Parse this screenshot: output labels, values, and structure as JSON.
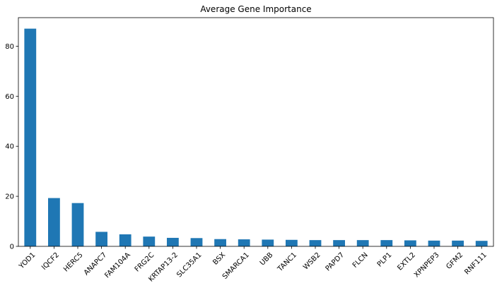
{
  "chart_data": {
    "type": "bar",
    "title": "Average Gene Importance",
    "xlabel": "",
    "ylabel": "",
    "categories": [
      "YOD1",
      "IQCF2",
      "HERC5",
      "ANAPC7",
      "FAM104A",
      "FRG2C",
      "KRTAP13-2",
      "SLC35A1",
      "BSX",
      "SMARCA1",
      "UBB",
      "TANC1",
      "WSB2",
      "PAPD7",
      "FLCN",
      "PLP1",
      "EXTL2",
      "XPNPEP3",
      "GFM2",
      "RNF111"
    ],
    "values": [
      87.0,
      19.3,
      17.3,
      5.8,
      4.8,
      3.9,
      3.4,
      3.3,
      2.9,
      2.8,
      2.7,
      2.6,
      2.5,
      2.5,
      2.5,
      2.5,
      2.4,
      2.3,
      2.3,
      2.2
    ],
    "ylim": [
      0,
      91.4
    ],
    "yticks": [
      0,
      20,
      40,
      60,
      80
    ],
    "grid": false,
    "legend": "none",
    "bar_color": "#1f77b4"
  }
}
